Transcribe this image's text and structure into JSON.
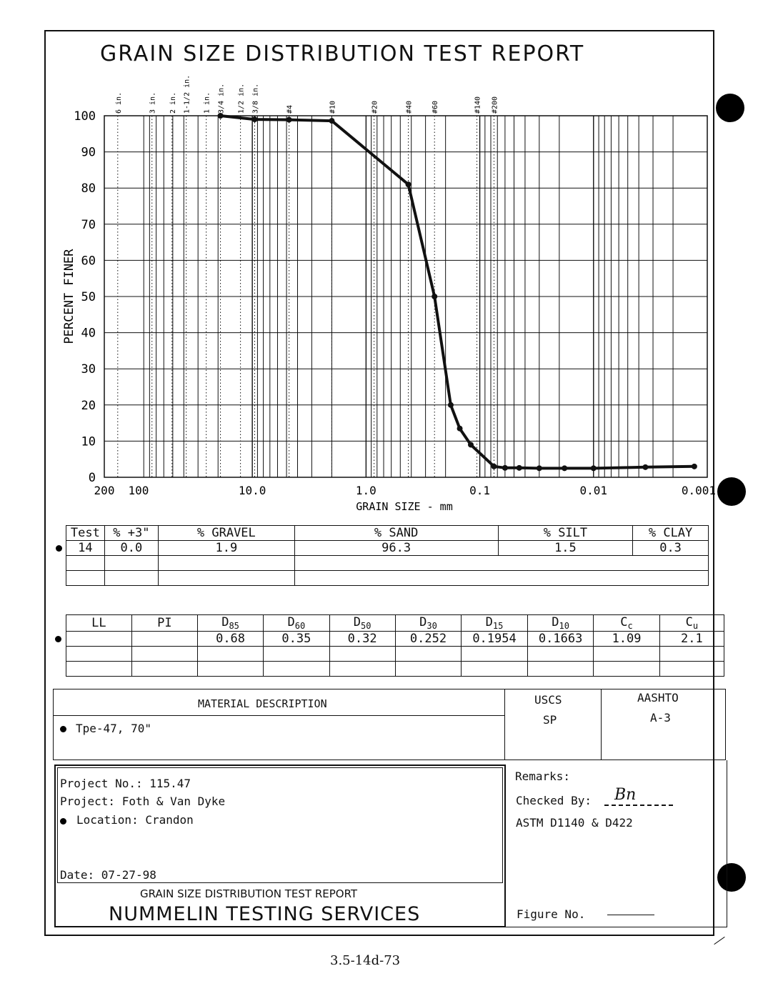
{
  "report": {
    "title": "GRAIN SIZE DISTRIBUTION TEST REPORT",
    "footer_title": "GRAIN SIZE DISTRIBUTION TEST REPORT",
    "company": "NUMMELIN TESTING SERVICES",
    "page_code": "3.5-14d-73"
  },
  "chart_data": {
    "type": "line",
    "title": "GRAIN SIZE DISTRIBUTION TEST REPORT",
    "xlabel": "GRAIN SIZE - mm",
    "ylabel": "PERCENT FINER",
    "x_scale": "log",
    "x_reversed": true,
    "xlim": [
      200,
      0.001
    ],
    "ylim": [
      0,
      100
    ],
    "x_tick_labels": [
      {
        "label": "200",
        "value": 200
      },
      {
        "label": "100",
        "value": 100
      },
      {
        "label": "10.0",
        "value": 10
      },
      {
        "label": "1.0",
        "value": 1
      },
      {
        "label": "0.1",
        "value": 0.1
      },
      {
        "label": "0.01",
        "value": 0.01
      },
      {
        "label": "0.001",
        "value": 0.001
      }
    ],
    "y_ticks": [
      0,
      10,
      20,
      30,
      40,
      50,
      60,
      70,
      80,
      90,
      100
    ],
    "sieve_labels": [
      {
        "label": "6 in.",
        "value": 152.4
      },
      {
        "label": "3 in.",
        "value": 76.2
      },
      {
        "label": "2 in.",
        "value": 50.8
      },
      {
        "label": "1-1/2 in.",
        "value": 38.1
      },
      {
        "label": "1 in.",
        "value": 25.4
      },
      {
        "label": "3/4 in.",
        "value": 19.05
      },
      {
        "label": "1/2 in.",
        "value": 12.7
      },
      {
        "label": "3/8 in.",
        "value": 9.525
      },
      {
        "label": "#4",
        "value": 4.75
      },
      {
        "label": "#10",
        "value": 2.0
      },
      {
        "label": "#20",
        "value": 0.85
      },
      {
        "label": "#40",
        "value": 0.425
      },
      {
        "label": "#60",
        "value": 0.25
      },
      {
        "label": "#140",
        "value": 0.106
      },
      {
        "label": "#200",
        "value": 0.075
      }
    ],
    "series": [
      {
        "color": "#111111",
        "x": [
          19.05,
          9.525,
          4.75,
          2.0,
          0.425,
          0.25,
          0.18,
          0.15,
          0.12,
          0.075,
          0.06,
          0.045,
          0.03,
          0.018,
          0.01,
          0.0035,
          0.0013
        ],
        "y": [
          100,
          99,
          98.9,
          98.6,
          81,
          50,
          20,
          13.5,
          9,
          3,
          2.6,
          2.6,
          2.5,
          2.5,
          2.5,
          2.8,
          3
        ]
      }
    ]
  },
  "results_table": {
    "headers": [
      "Test",
      "% +3\"",
      "% GRAVEL",
      "% SAND",
      "% SILT",
      "% CLAY"
    ],
    "row": [
      "14",
      "0.0",
      "1.9",
      "96.3",
      "1.5",
      "0.3"
    ]
  },
  "params_table": {
    "headers": [
      {
        "base": "LL",
        "sub": ""
      },
      {
        "base": "PI",
        "sub": ""
      },
      {
        "base": "D",
        "sub": "85"
      },
      {
        "base": "D",
        "sub": "60"
      },
      {
        "base": "D",
        "sub": "50"
      },
      {
        "base": "D",
        "sub": "30"
      },
      {
        "base": "D",
        "sub": "15"
      },
      {
        "base": "D",
        "sub": "10"
      },
      {
        "base": "C",
        "sub": "c"
      },
      {
        "base": "C",
        "sub": "u"
      }
    ],
    "row": [
      "",
      "",
      "0.68",
      "0.35",
      "0.32",
      "0.252",
      "0.1954",
      "0.1663",
      "1.09",
      "2.1"
    ]
  },
  "material": {
    "header": "MATERIAL DESCRIPTION",
    "uscs_header": "USCS",
    "aashto_header": "AASHTO",
    "description": "Tpe-47, 70\"",
    "uscs": "SP",
    "aashto": "A-3"
  },
  "project": {
    "number_line": "Project No.: 115.47",
    "project_line": "Project: Foth & Van Dyke",
    "location_line": "Location: Crandon",
    "date_line": "Date: 07-27-98"
  },
  "remarks": {
    "label": "Remarks:",
    "checked_by": "Checked By:",
    "checked_initials": "Bn",
    "standard": "ASTM D1140 & D422",
    "figure_no": "Figure No."
  }
}
